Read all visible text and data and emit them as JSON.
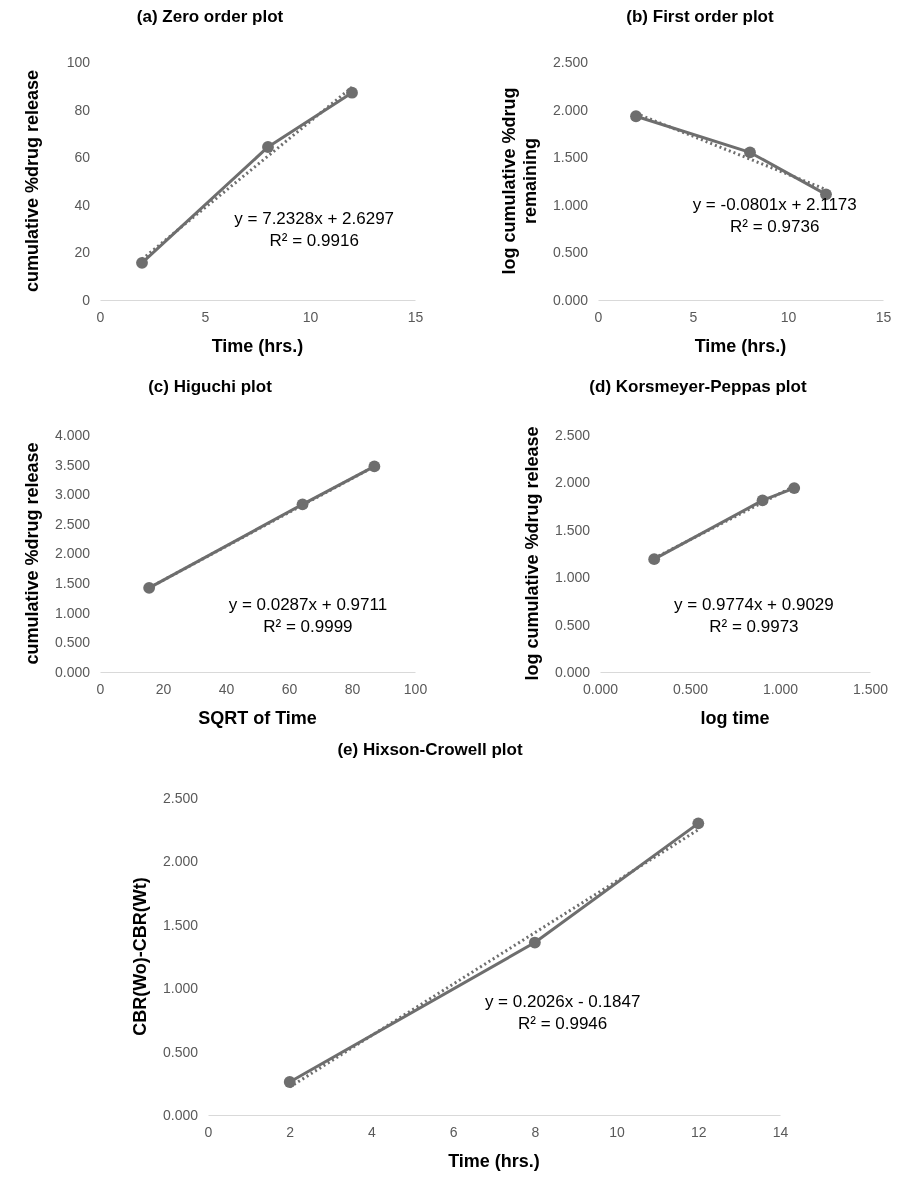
{
  "chart_data": [
    {
      "type": "line",
      "title": "(a) Zero order plot",
      "xlabel": "Time (hrs.)",
      "ylabel": "cumulative %drug release",
      "xlim": [
        0,
        15
      ],
      "xticks": [
        0,
        5,
        10,
        15
      ],
      "ylim": [
        0,
        100
      ],
      "yticks": [
        0,
        20,
        40,
        60,
        80,
        100
      ],
      "marker": "circle",
      "line_style": "solid",
      "grid": false,
      "series": [
        {
          "color": "#6e6e6e",
          "x": [
            2,
            8,
            12
          ],
          "values": [
            15.6,
            64.3,
            87.1
          ]
        },
        {
          "type": "line",
          "color": "#6e6e6e",
          "line_style": "dotted",
          "marker": "none",
          "x": [
            2,
            12
          ],
          "values": [
            17.1,
            89.4
          ]
        }
      ],
      "annotations": [
        "y = 7.2328x + 2.6297",
        "R² = 0.9916"
      ]
    },
    {
      "type": "line",
      "title": "(b) First order plot",
      "xlabel": "Time (hrs.)",
      "ylabel": "log cumulative %drug remaining",
      "xlim": [
        0,
        15
      ],
      "xticks": [
        0,
        5,
        10,
        15
      ],
      "ylim": [
        0,
        2.5
      ],
      "yticks": [
        {
          "value": 0,
          "label": "0.000"
        },
        {
          "value": 0.5,
          "label": "0.500"
        },
        {
          "value": 1,
          "label": "1.000"
        },
        {
          "value": 1.5,
          "label": "1.500"
        },
        {
          "value": 2,
          "label": "2.000"
        },
        {
          "value": 2.5,
          "label": "2.500"
        }
      ],
      "marker": "circle",
      "line_style": "solid",
      "grid": false,
      "series": [
        {
          "color": "#6e6e6e",
          "x": [
            2,
            8,
            12
          ],
          "values": [
            1.93,
            1.55,
            1.11
          ]
        },
        {
          "type": "line",
          "color": "#6e6e6e",
          "line_style": "dotted",
          "marker": "none",
          "x": [
            2,
            12
          ],
          "values": [
            1.96,
            1.16
          ]
        }
      ],
      "annotations": [
        "y = -0.0801x + 2.1173",
        "R² = 0.9736"
      ]
    },
    {
      "type": "line",
      "title": "(c) Higuchi plot",
      "xlabel": "SQRT of Time",
      "ylabel": "cumulative %drug release",
      "xlim": [
        0,
        100
      ],
      "xticks": [
        0,
        20,
        40,
        60,
        80,
        100
      ],
      "ylim": [
        0,
        4
      ],
      "yticks": [
        {
          "value": 0,
          "label": "0.000"
        },
        {
          "value": 0.5,
          "label": "0.500"
        },
        {
          "value": 1,
          "label": "1.000"
        },
        {
          "value": 1.5,
          "label": "1.500"
        },
        {
          "value": 2,
          "label": "2.000"
        },
        {
          "value": 2.5,
          "label": "2.500"
        },
        {
          "value": 3,
          "label": "3.000"
        },
        {
          "value": 3.5,
          "label": "3.500"
        },
        {
          "value": 4,
          "label": "4.000"
        }
      ],
      "marker": "circle",
      "line_style": "solid",
      "grid": false,
      "series": [
        {
          "color": "#6e6e6e",
          "x": [
            15.6,
            64.3,
            87.1
          ],
          "values": [
            1.42,
            2.83,
            3.47
          ]
        },
        {
          "type": "line",
          "color": "#6e6e6e",
          "line_style": "dotted",
          "marker": "none",
          "x": [
            15.6,
            87.1
          ],
          "values": [
            1.42,
            3.47
          ]
        }
      ],
      "annotations": [
        "y = 0.0287x + 0.9711",
        "R² = 0.9999"
      ]
    },
    {
      "type": "line",
      "title": "(d) Korsmeyer-Peppas plot",
      "xlabel": "log time",
      "ylabel": "log cumulative %drug release",
      "xlim": [
        0,
        1.5
      ],
      "xticks": [
        {
          "value": 0,
          "label": "0.000"
        },
        {
          "value": 0.5,
          "label": "0.500"
        },
        {
          "value": 1,
          "label": "1.000"
        },
        {
          "value": 1.5,
          "label": "1.500"
        }
      ],
      "ylim": [
        0,
        2.5
      ],
      "yticks": [
        {
          "value": 0,
          "label": "0.000"
        },
        {
          "value": 0.5,
          "label": "0.500"
        },
        {
          "value": 1,
          "label": "1.000"
        },
        {
          "value": 1.5,
          "label": "1.500"
        },
        {
          "value": 2,
          "label": "2.000"
        },
        {
          "value": 2.5,
          "label": "2.500"
        }
      ],
      "marker": "circle",
      "line_style": "solid",
      "grid": false,
      "series": [
        {
          "color": "#6e6e6e",
          "x": [
            0.301,
            0.903,
            1.079
          ],
          "values": [
            1.19,
            1.81,
            1.94
          ]
        },
        {
          "type": "line",
          "color": "#6e6e6e",
          "line_style": "dotted",
          "marker": "none",
          "x": [
            0.301,
            1.079
          ],
          "values": [
            1.2,
            1.96
          ]
        }
      ],
      "annotations": [
        "y = 0.9774x + 0.9029",
        "R² = 0.9973"
      ]
    },
    {
      "type": "line",
      "title": "(e) Hixson-Crowell plot",
      "xlabel": "Time (hrs.)",
      "ylabel": "CBR(Wo)-CBR(Wt)",
      "xlim": [
        0,
        14
      ],
      "xticks": [
        0,
        2,
        4,
        6,
        8,
        10,
        12,
        14
      ],
      "ylim": [
        0,
        2.5
      ],
      "yticks": [
        {
          "value": 0,
          "label": "0.000"
        },
        {
          "value": 0.5,
          "label": "0.500"
        },
        {
          "value": 1,
          "label": "1.000"
        },
        {
          "value": 1.5,
          "label": "1.500"
        },
        {
          "value": 2,
          "label": "2.000"
        },
        {
          "value": 2.5,
          "label": "2.500"
        }
      ],
      "marker": "circle",
      "line_style": "solid",
      "grid": false,
      "series": [
        {
          "color": "#6e6e6e",
          "x": [
            2,
            8,
            12
          ],
          "values": [
            0.26,
            1.36,
            2.3
          ]
        },
        {
          "type": "line",
          "color": "#6e6e6e",
          "line_style": "dotted",
          "marker": "none",
          "x": [
            2,
            12
          ],
          "values": [
            0.22,
            2.25
          ]
        }
      ],
      "annotations": [
        "y = 0.2026x - 0.1847",
        "R² = 0.9946"
      ]
    }
  ]
}
